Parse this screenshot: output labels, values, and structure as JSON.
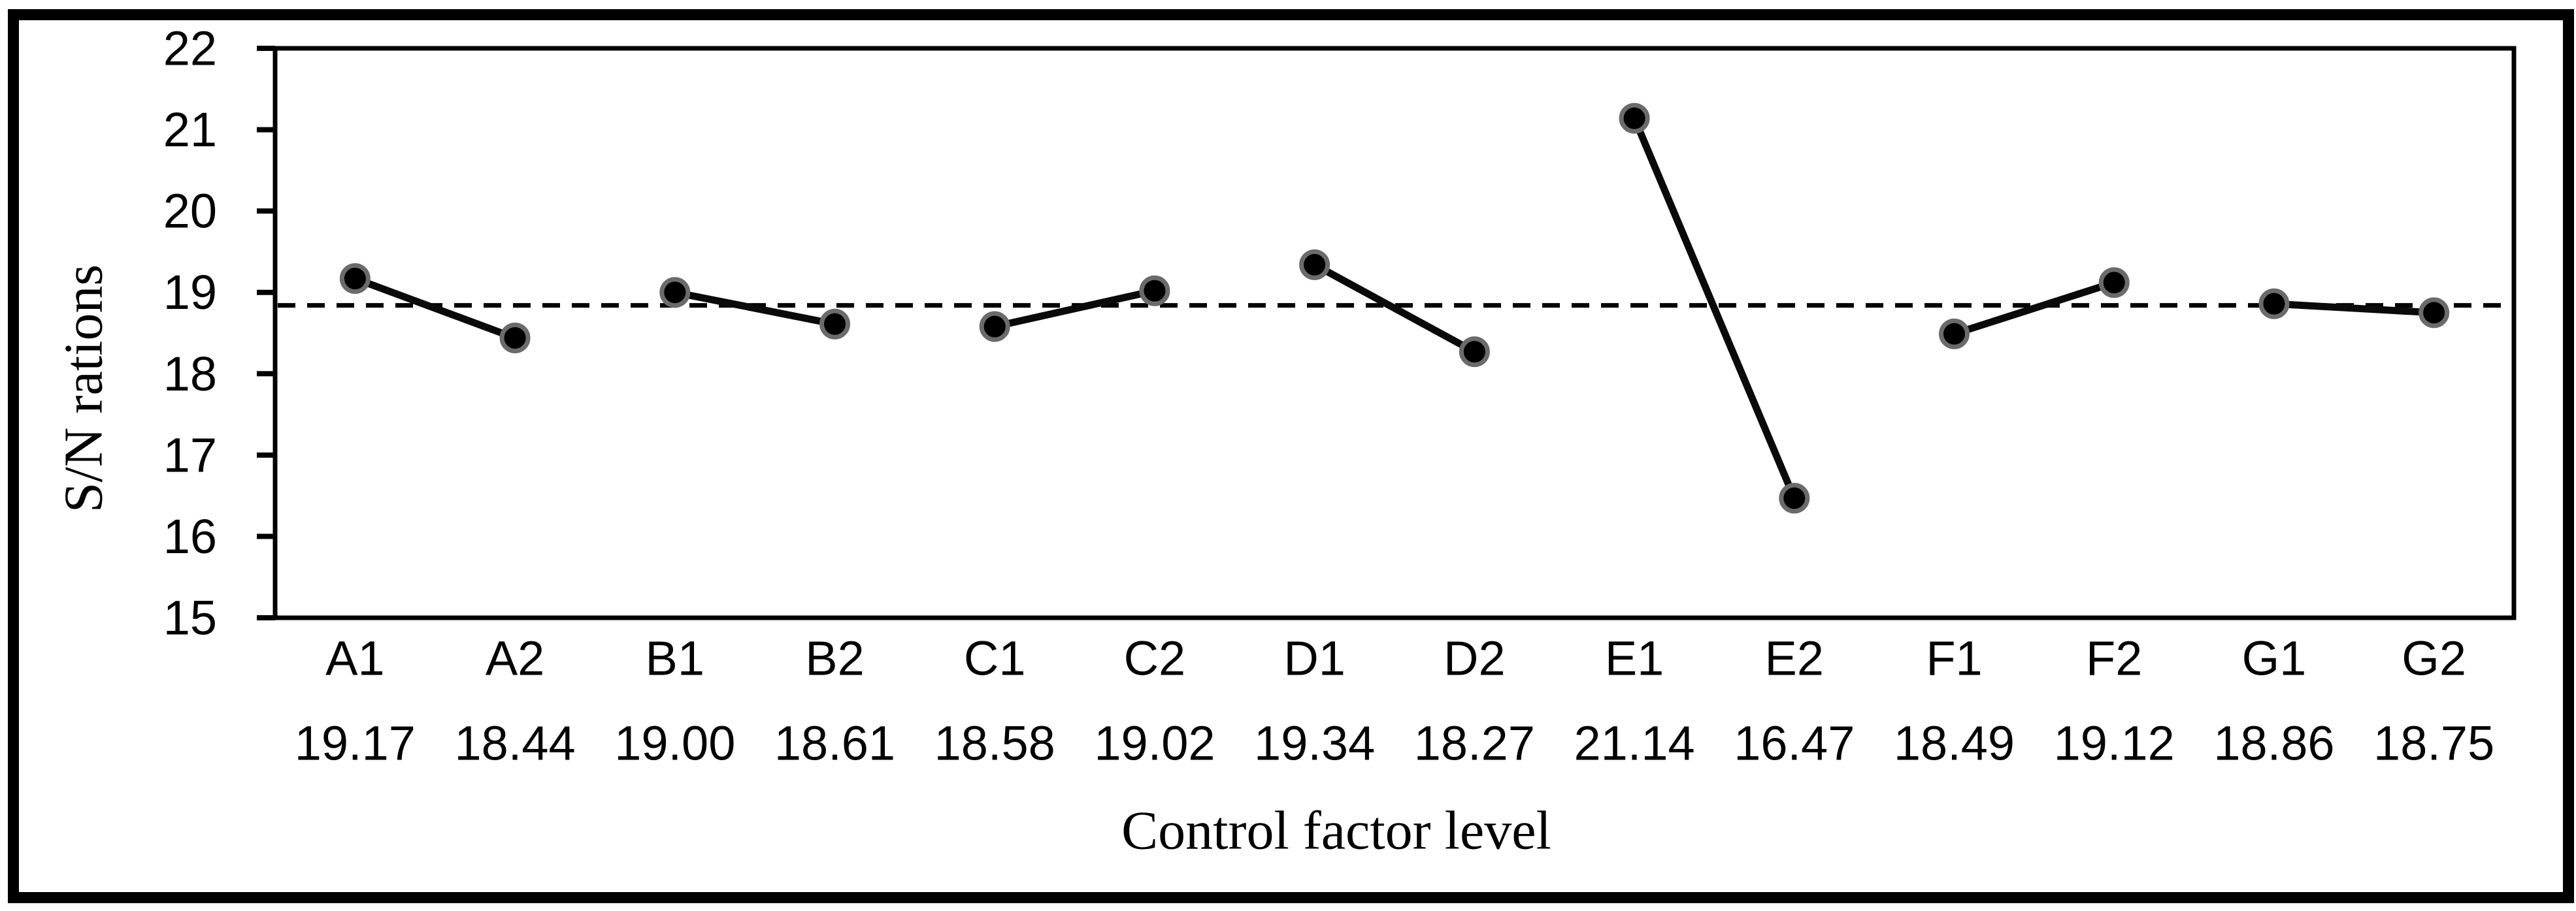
{
  "chart_data": {
    "type": "line",
    "title": "",
    "xlabel": "Control factor level",
    "ylabel": "S/N rations",
    "ylim": [
      15,
      22
    ],
    "yticks": [
      15,
      16,
      17,
      18,
      19,
      20,
      21,
      22
    ],
    "categories": [
      "A1",
      "A2",
      "B1",
      "B2",
      "C1",
      "C2",
      "D1",
      "D2",
      "E1",
      "E2",
      "F1",
      "F2",
      "G1",
      "G2"
    ],
    "values": [
      19.17,
      18.44,
      19.0,
      18.61,
      18.58,
      19.02,
      19.34,
      18.27,
      21.14,
      16.47,
      18.49,
      19.12,
      18.86,
      18.75
    ],
    "value_labels": [
      "19.17",
      "18.44",
      "19.00",
      "18.61",
      "18.58",
      "19.02",
      "19.34",
      "18.27",
      "21.14",
      "16.47",
      "18.49",
      "19.12",
      "18.86",
      "18.75"
    ],
    "segments": [
      [
        0,
        1
      ],
      [
        2,
        3
      ],
      [
        4,
        5
      ],
      [
        6,
        7
      ],
      [
        8,
        9
      ],
      [
        10,
        11
      ],
      [
        12,
        13
      ]
    ],
    "mean_line": {
      "value": 18.84,
      "style": "dashed"
    },
    "grid": false,
    "legend": false,
    "colors": {
      "series_line": "#0a0a0a",
      "marker_fill": "#000000",
      "marker_ring": "#6b6b6b",
      "mean_line": "#000000",
      "axis": "#000000",
      "text": "#000000"
    }
  }
}
